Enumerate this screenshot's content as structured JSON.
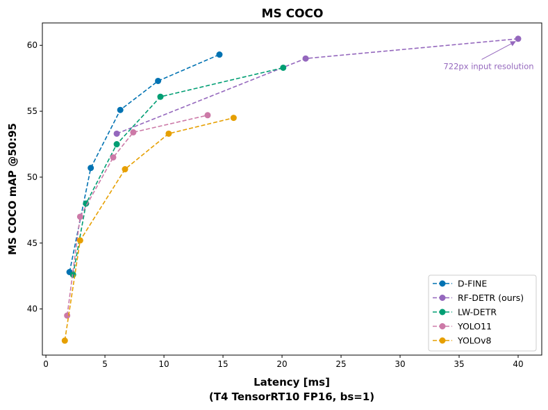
{
  "chart_data": {
    "type": "line",
    "title": "MS COCO",
    "xlabel": "Latency [ms]",
    "xlabel_line2": "(T4 TensorRT10 FP16, bs=1)",
    "ylabel": "MS COCO mAP @50:95",
    "xlim": [
      -0.3,
      42
    ],
    "ylim": [
      36.5,
      61.7
    ],
    "xticks": [
      0,
      5,
      10,
      15,
      20,
      25,
      30,
      35,
      40
    ],
    "yticks": [
      40,
      45,
      50,
      55,
      60
    ],
    "grid": false,
    "legend_position": "bottom-right",
    "series": [
      {
        "name": "D-FINE",
        "color": "#0072b2",
        "x": [
          2.0,
          3.8,
          6.3,
          9.5,
          14.7
        ],
        "y": [
          42.8,
          50.7,
          55.1,
          57.3,
          59.3
        ]
      },
      {
        "name": "RF-DETR (ours)",
        "color": "#9467bd",
        "x": [
          6.0,
          22.0,
          40.0
        ],
        "y": [
          53.3,
          59.0,
          60.5
        ]
      },
      {
        "name": "LW-DETR",
        "color": "#009e73",
        "x": [
          2.3,
          3.4,
          6.0,
          9.7,
          20.1
        ],
        "y": [
          42.6,
          48.0,
          52.5,
          56.1,
          58.3
        ]
      },
      {
        "name": "YOLO11",
        "color": "#cc79a7",
        "x": [
          1.8,
          2.9,
          5.7,
          7.4,
          13.7
        ],
        "y": [
          39.5,
          47.0,
          51.5,
          53.4,
          54.7
        ]
      },
      {
        "name": "YOLOv8",
        "color": "#e69f00",
        "x": [
          1.6,
          2.9,
          6.7,
          10.4,
          15.9
        ],
        "y": [
          37.6,
          45.2,
          50.6,
          53.3,
          54.5
        ]
      }
    ],
    "annotations": [
      {
        "text": "722px input resolution",
        "color": "#9467bd",
        "point_x": 40.0,
        "point_y": 60.5,
        "text_x": 37.5,
        "text_y": 58.4
      }
    ]
  }
}
